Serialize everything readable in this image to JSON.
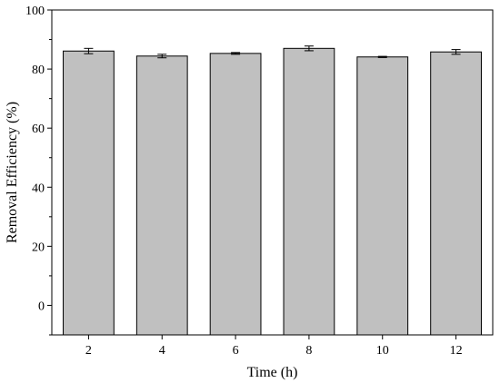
{
  "chart_data": {
    "type": "bar",
    "categories": [
      "2",
      "4",
      "6",
      "8",
      "10",
      "12"
    ],
    "values": [
      86.1,
      84.4,
      85.3,
      87.0,
      84.1,
      85.8
    ],
    "errors": [
      0.9,
      0.6,
      0.3,
      0.8,
      0.2,
      0.8
    ],
    "xlabel": "Time (h)",
    "ylabel": "Removal Efficiency (%)",
    "ylim": [
      -10,
      100
    ],
    "yticks": [
      0,
      20,
      40,
      60,
      80,
      100
    ],
    "bar_color": "#c0c0c0",
    "grid": false
  }
}
